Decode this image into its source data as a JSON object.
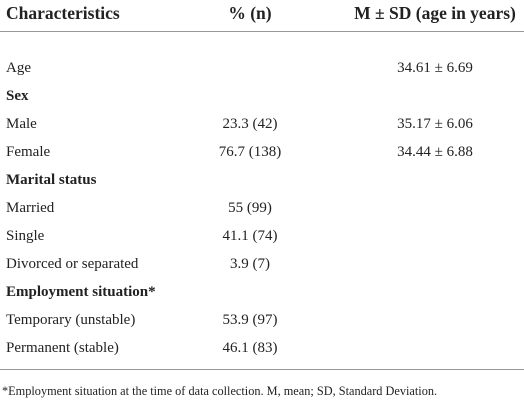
{
  "table": {
    "header": [
      "Characteristics",
      "% (n)",
      "M ± SD (age in years)"
    ],
    "rows": [
      {
        "label": "Age",
        "mean_sd": "34.61 ± 6.69"
      },
      {
        "section": "Sex"
      },
      {
        "label": "Male",
        "percent_n": "23.3 (42)",
        "mean_sd": "35.17 ± 6.06"
      },
      {
        "label": "Female",
        "percent_n": "76.7 (138)",
        "mean_sd": "34.44 ± 6.88"
      },
      {
        "section": "Marital status"
      },
      {
        "label": "Married",
        "percent_n": "55 (99)"
      },
      {
        "label": "Single",
        "percent_n": "41.1 (74)"
      },
      {
        "label": "Divorced or separated",
        "percent_n": "3.9 (7)"
      },
      {
        "section": "Employment situation*"
      },
      {
        "label": "Temporary (unstable)",
        "percent_n": "53.9 (97)"
      },
      {
        "label": "Permanent (stable)",
        "percent_n": "46.1 (83)"
      }
    ],
    "footnote": "*Employment situation at the time of data collection. M, mean; SD, Standard Deviation."
  }
}
